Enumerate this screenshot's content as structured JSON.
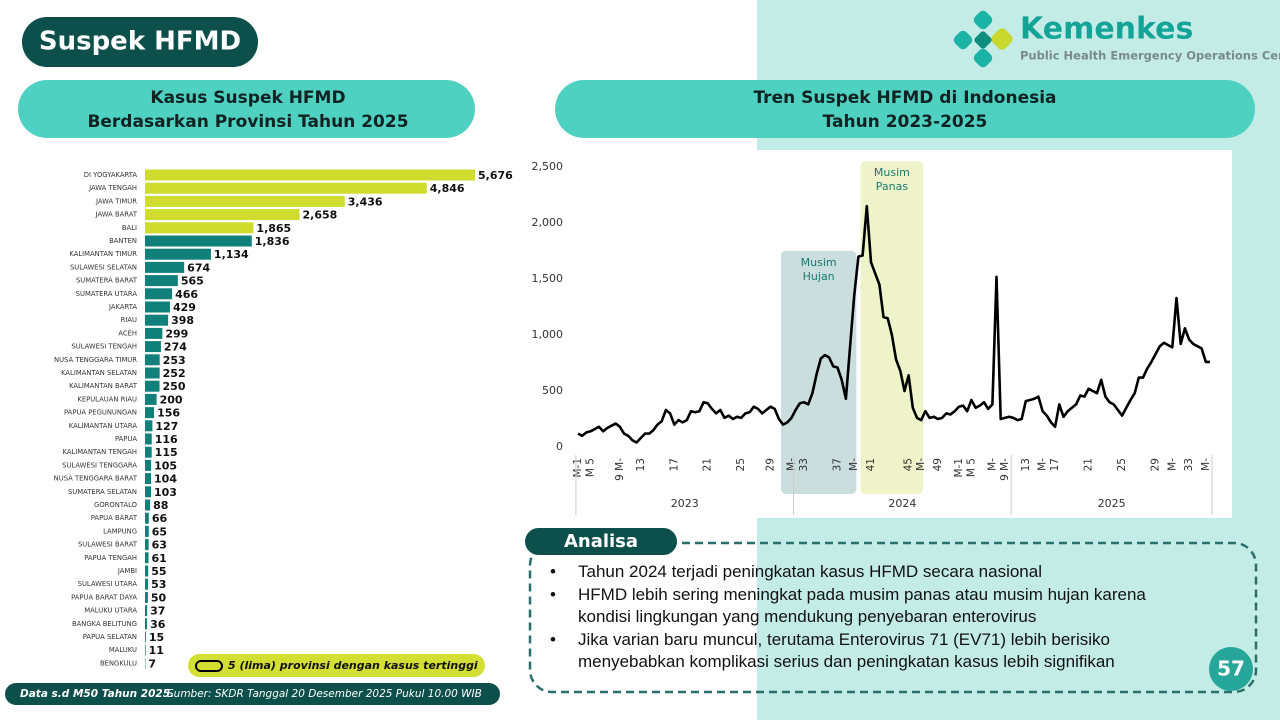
{
  "header": {
    "title": "Suspek HFMD"
  },
  "logo": {
    "name": "Kemenkes",
    "subtitle": "Public Health Emergency Operations Center"
  },
  "chart_data": [
    {
      "type": "bar",
      "orientation": "horizontal",
      "title_lines": [
        "Kasus Suspek HFMD",
        "Berdasarkan Provinsi Tahun 2025"
      ],
      "categories": [
        "DI YOGYAKARTA",
        "JAWA TENGAH",
        "JAWA TIMUR",
        "JAWA BARAT",
        "BALI",
        "BANTEN",
        "KALIMANTAN TIMUR",
        "SULAWESI SELATAN",
        "SUMATERA BARAT",
        "SUMATERA UTARA",
        "JAKARTA",
        "RIAU",
        "ACEH",
        "SULAWESI TENGAH",
        "NUSA TENGGARA TIMUR",
        "KALIMANTAN SELATAN",
        "KALIMANTAN BARAT",
        "KEPULAUAN RIAU",
        "PAPUA PEGUNUNGAN",
        "KALIMANTAN UTARA",
        "PAPUA",
        "KALIMANTAN TENGAH",
        "SULAWESI TENGGARA",
        "NUSA TENGGARA BARAT",
        "SUMATERA SELATAN",
        "GORONTALO",
        "PAPUA BARAT",
        "LAMPUNG",
        "SULAWESI BARAT",
        "PAPUA TENGAH",
        "JAMBI",
        "SULAWESI UTARA",
        "PAPUA BARAT DAYA",
        "MALUKU UTARA",
        "BANGKA BELITUNG",
        "PAPUA SELATAN",
        "MALUKU",
        "BENGKULU"
      ],
      "values": [
        5676,
        4846,
        3436,
        2658,
        1865,
        1836,
        1134,
        674,
        565,
        466,
        429,
        398,
        299,
        274,
        253,
        252,
        250,
        200,
        156,
        127,
        116,
        115,
        105,
        104,
        103,
        88,
        66,
        65,
        63,
        61,
        55,
        53,
        50,
        37,
        36,
        15,
        11,
        7
      ],
      "value_labels": [
        "5,676",
        "4,846",
        "3,436",
        "2,658",
        "1,865",
        "1,836",
        "1,134",
        "674",
        "565",
        "466",
        "429",
        "398",
        "299",
        "274",
        "253",
        "252",
        "250",
        "200",
        "156",
        "127",
        "116",
        "115",
        "105",
        "104",
        "103",
        "88",
        "66",
        "65",
        "63",
        "61",
        "55",
        "53",
        "50",
        "37",
        "36",
        "15",
        "11",
        "7"
      ],
      "colors": [
        "#cfdc2e",
        "#cfdc2e",
        "#cfdc2e",
        "#cfdc2e",
        "#cfdc2e",
        "#11807a",
        "#11807a",
        "#11807a",
        "#11807a",
        "#11807a",
        "#11807a",
        "#11807a",
        "#11807a",
        "#11807a",
        "#11807a",
        "#11807a",
        "#11807a",
        "#11807a",
        "#11807a",
        "#11807a",
        "#11807a",
        "#11807a",
        "#11807a",
        "#11807a",
        "#11807a",
        "#11807a",
        "#11807a",
        "#11807a",
        "#11807a",
        "#11807a",
        "#11807a",
        "#11807a",
        "#11807a",
        "#11807a",
        "#11807a",
        "#11807a",
        "#11807a",
        "#11807a"
      ],
      "legend_note": "5 (lima) provinsi dengan kasus tertinggi",
      "legend_color": "#d4df33"
    },
    {
      "type": "line",
      "title_lines": [
        "Tren Suspek HFMD di Indonesia",
        "Tahun 2023-2025"
      ],
      "categories": [
        "M-1",
        null,
        null,
        "M 5",
        null,
        null,
        null,
        null,
        null,
        null,
        "9 M-",
        null,
        null,
        null,
        null,
        "13",
        null,
        null,
        null,
        null,
        null,
        null,
        null,
        "17",
        null,
        null,
        null,
        null,
        null,
        null,
        null,
        "21",
        null,
        null,
        null,
        null,
        null,
        null,
        null,
        "25",
        null,
        null,
        null,
        null,
        null,
        null,
        "29",
        null,
        null,
        null,
        null,
        "M-",
        null,
        null,
        "33",
        null,
        null,
        null,
        null,
        null,
        null,
        null,
        "37",
        null,
        null,
        null,
        "M-",
        null,
        null,
        null,
        "41",
        null,
        null,
        null,
        null,
        null,
        null,
        null,
        null,
        "45",
        null,
        null,
        "M-",
        null,
        null,
        null,
        "49",
        null,
        null,
        null,
        null,
        "M-1",
        null,
        null,
        "M 5",
        null,
        null,
        null,
        null,
        "M-",
        null,
        null,
        "9 M-",
        null,
        null,
        null,
        null,
        "13",
        null,
        null,
        null,
        "M-",
        null,
        null,
        "17",
        null,
        null,
        null,
        null,
        null,
        null,
        null,
        "21",
        null,
        null,
        null,
        null,
        null,
        null,
        null,
        "25",
        null,
        null,
        null,
        null,
        null,
        null,
        null,
        "29",
        null,
        null,
        null,
        "M-",
        null,
        null,
        null,
        "33",
        null,
        null,
        null,
        "M-",
        null
      ],
      "values": [
        120,
        100,
        130,
        140,
        160,
        180,
        140,
        170,
        190,
        210,
        180,
        120,
        100,
        60,
        40,
        80,
        120,
        120,
        150,
        200,
        230,
        330,
        300,
        200,
        240,
        220,
        240,
        320,
        310,
        320,
        400,
        390,
        340,
        300,
        330,
        260,
        280,
        250,
        270,
        260,
        300,
        310,
        360,
        340,
        300,
        330,
        360,
        340,
        250,
        200,
        220,
        260,
        330,
        390,
        400,
        380,
        480,
        650,
        790,
        820,
        800,
        720,
        710,
        600,
        430,
        900,
        1350,
        1700,
        1710,
        2150,
        1650,
        1550,
        1450,
        1160,
        1150,
        1000,
        780,
        680,
        500,
        640,
        350,
        260,
        240,
        320,
        260,
        270,
        250,
        260,
        300,
        290,
        320,
        360,
        370,
        320,
        420,
        350,
        370,
        400,
        340,
        380,
        1520,
        250,
        260,
        270,
        260,
        240,
        250,
        410,
        420,
        430,
        450,
        320,
        280,
        220,
        180,
        380,
        270,
        320,
        350,
        380,
        460,
        450,
        520,
        500,
        480,
        600,
        450,
        400,
        380,
        330,
        280,
        350,
        420,
        480,
        620,
        620,
        700,
        760,
        830,
        900,
        930,
        910,
        890,
        1330,
        920,
        1060,
        960,
        920,
        900,
        880,
        760,
        760
      ],
      "color": "#000000",
      "x_groups": [
        {
          "label": "2023",
          "count": 52
        },
        {
          "label": "2024",
          "count": 52
        },
        {
          "label": "2025",
          "count": 48
        }
      ],
      "ylim": [
        0,
        2500
      ],
      "yticks": [
        0,
        500,
        {
          "value": 1000,
          "label": "1,000"
        },
        {
          "value": 1500,
          "label": "1,500"
        },
        {
          "value": 2000,
          "label": "2,000"
        },
        {
          "value": 2500,
          "label": "2,500"
        }
      ],
      "grid": false,
      "annotations": [
        {
          "lines": [
            "Musim",
            "Hujan"
          ],
          "start": 49,
          "end": 66,
          "color": "#c9dedd"
        },
        {
          "lines": [
            "Musim",
            "Panas"
          ],
          "start": 68,
          "end": 82,
          "color": "#eef3c9"
        }
      ]
    }
  ],
  "analysis": {
    "title": "Analisa",
    "bullets": [
      "Tahun 2024 terjadi peningkatan kasus HFMD secara nasional",
      "HFMD lebih sering meningkat pada musim panas atau musim hujan karena kondisi lingkungan yang mendukung penyebaran enterovirus",
      "Jika varian baru muncul, terutama Enterovirus 71 (EV71) lebih berisiko menyebabkan komplikasi serius dan peningkatan kasus lebih signifikan"
    ]
  },
  "footer": {
    "period": "Data s.d M50 Tahun 2025.",
    "source": "Sumber: SKDR Tanggal 20 Desember 2025 Pukul 10.00 WIB"
  },
  "page_number": "57"
}
